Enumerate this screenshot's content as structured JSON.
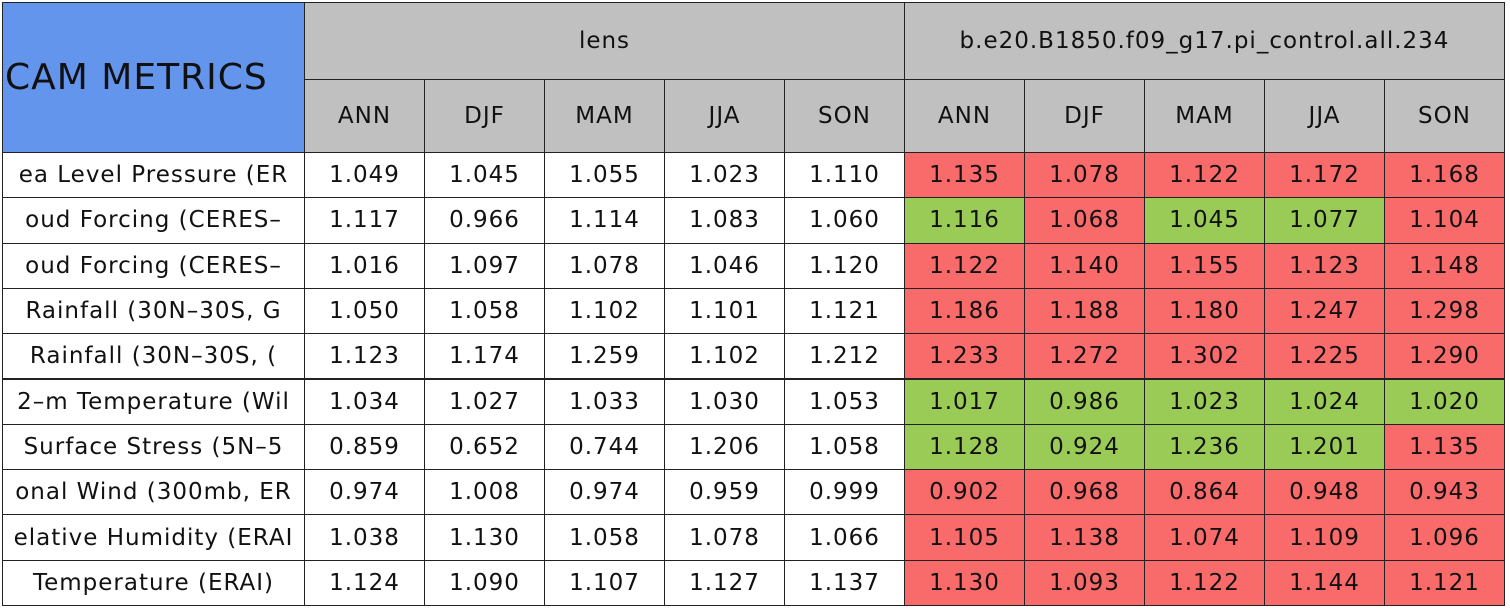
{
  "table": {
    "title": "CAM METRICS",
    "groups": [
      "lens",
      "b.e20.B1850.f09_g17.pi_control.all.234"
    ],
    "seasons": [
      [
        "ANN",
        "DJF",
        "MAM",
        "JJA",
        "SON"
      ],
      [
        "ANN",
        "DJF",
        "MAM",
        "JJA",
        "SON"
      ]
    ],
    "rows": [
      {
        "label": "ea Level Pressure (ER",
        "values": [
          "1.049",
          "1.045",
          "1.055",
          "1.023",
          "1.110",
          "1.135",
          "1.078",
          "1.122",
          "1.172",
          "1.168"
        ],
        "colors": [
          "#ffffff",
          "#ffffff",
          "#ffffff",
          "#ffffff",
          "#ffffff",
          "#f96a6a",
          "#f96a6a",
          "#f96a6a",
          "#f96a6a",
          "#f96a6a"
        ]
      },
      {
        "label": "oud Forcing (CERES–",
        "values": [
          "1.117",
          "0.966",
          "1.114",
          "1.083",
          "1.060",
          "1.116",
          "1.068",
          "1.045",
          "1.077",
          "1.104"
        ],
        "colors": [
          "#ffffff",
          "#ffffff",
          "#ffffff",
          "#ffffff",
          "#ffffff",
          "#9bcb57",
          "#f96a6a",
          "#9bcb57",
          "#9bcb57",
          "#f96a6a"
        ]
      },
      {
        "label": "oud Forcing (CERES–",
        "values": [
          "1.016",
          "1.097",
          "1.078",
          "1.046",
          "1.120",
          "1.122",
          "1.140",
          "1.155",
          "1.123",
          "1.148"
        ],
        "colors": [
          "#ffffff",
          "#ffffff",
          "#ffffff",
          "#ffffff",
          "#ffffff",
          "#f96a6a",
          "#f96a6a",
          "#f96a6a",
          "#f96a6a",
          "#f96a6a"
        ]
      },
      {
        "label": "Rainfall (30N–30S, G",
        "values": [
          "1.050",
          "1.058",
          "1.102",
          "1.101",
          "1.121",
          "1.186",
          "1.188",
          "1.180",
          "1.247",
          "1.298"
        ],
        "colors": [
          "#ffffff",
          "#ffffff",
          "#ffffff",
          "#ffffff",
          "#ffffff",
          "#f96a6a",
          "#f96a6a",
          "#f96a6a",
          "#f96a6a",
          "#f96a6a"
        ]
      },
      {
        "label": "Rainfall (30N–30S, (",
        "values": [
          "1.123",
          "1.174",
          "1.259",
          "1.102",
          "1.212",
          "1.233",
          "1.272",
          "1.302",
          "1.225",
          "1.290"
        ],
        "colors": [
          "#ffffff",
          "#ffffff",
          "#ffffff",
          "#ffffff",
          "#ffffff",
          "#f96a6a",
          "#f96a6a",
          "#f96a6a",
          "#f96a6a",
          "#f96a6a"
        ]
      },
      {
        "label": "2–m Temperature (Wil",
        "values": [
          "1.034",
          "1.027",
          "1.033",
          "1.030",
          "1.053",
          "1.017",
          "0.986",
          "1.023",
          "1.024",
          "1.020"
        ],
        "colors": [
          "#ffffff",
          "#ffffff",
          "#ffffff",
          "#ffffff",
          "#ffffff",
          "#9bcb57",
          "#9bcb57",
          "#9bcb57",
          "#9bcb57",
          "#9bcb57"
        ]
      },
      {
        "label": "Surface Stress (5N–5",
        "values": [
          "0.859",
          "0.652",
          "0.744",
          "1.206",
          "1.058",
          "1.128",
          "0.924",
          "1.236",
          "1.201",
          "1.135"
        ],
        "colors": [
          "#ffffff",
          "#ffffff",
          "#ffffff",
          "#ffffff",
          "#ffffff",
          "#9bcb57",
          "#9bcb57",
          "#9bcb57",
          "#9bcb57",
          "#f96a6a"
        ]
      },
      {
        "label": "onal Wind (300mb, ER",
        "values": [
          "0.974",
          "1.008",
          "0.974",
          "0.959",
          "0.999",
          "0.902",
          "0.968",
          "0.864",
          "0.948",
          "0.943"
        ],
        "colors": [
          "#ffffff",
          "#ffffff",
          "#ffffff",
          "#ffffff",
          "#ffffff",
          "#f96a6a",
          "#f96a6a",
          "#f96a6a",
          "#f96a6a",
          "#f96a6a"
        ]
      },
      {
        "label": "elative Humidity (ERAI",
        "values": [
          "1.038",
          "1.130",
          "1.058",
          "1.078",
          "1.066",
          "1.105",
          "1.138",
          "1.074",
          "1.109",
          "1.096"
        ],
        "colors": [
          "#ffffff",
          "#ffffff",
          "#ffffff",
          "#ffffff",
          "#ffffff",
          "#f96a6a",
          "#f96a6a",
          "#f96a6a",
          "#f96a6a",
          "#f96a6a"
        ]
      },
      {
        "label": "Temperature (ERAI)",
        "values": [
          "1.124",
          "1.090",
          "1.107",
          "1.127",
          "1.137",
          "1.130",
          "1.093",
          "1.122",
          "1.144",
          "1.121"
        ],
        "colors": [
          "#ffffff",
          "#ffffff",
          "#ffffff",
          "#ffffff",
          "#ffffff",
          "#f96a6a",
          "#f96a6a",
          "#f96a6a",
          "#f96a6a",
          "#f96a6a"
        ]
      }
    ]
  }
}
